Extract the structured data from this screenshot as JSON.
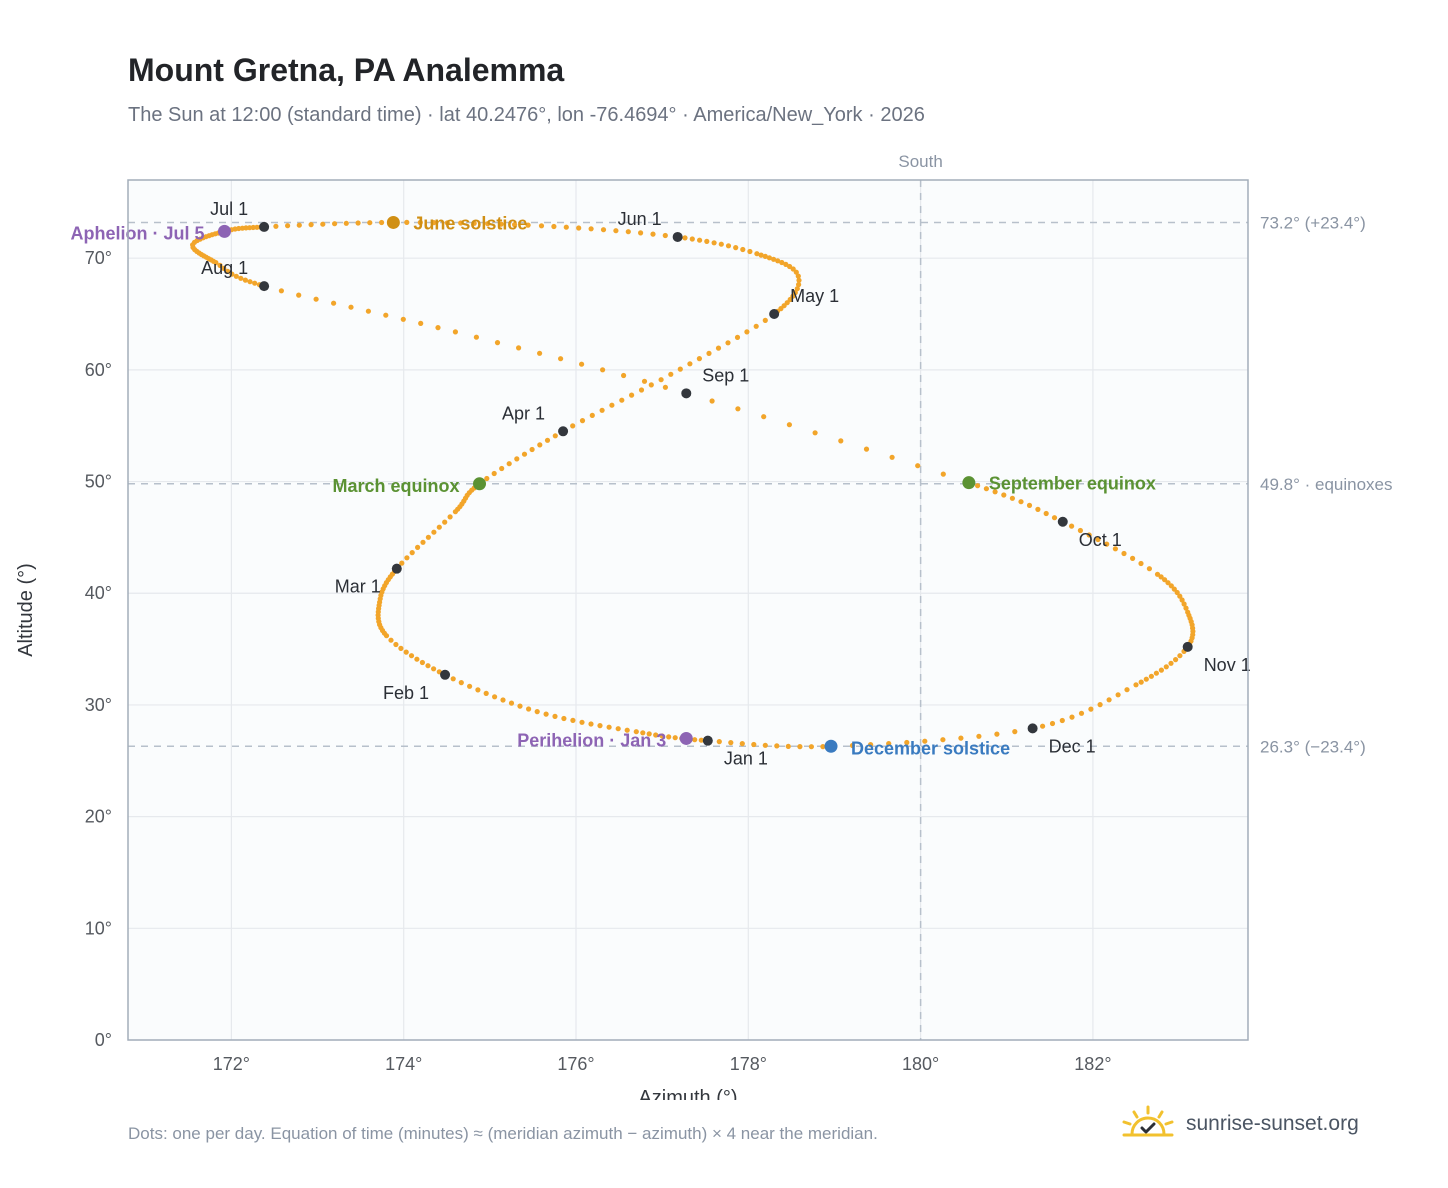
{
  "title": "Mount Gretna, PA Analemma",
  "subtitle": "The Sun at 12:00 (standard time) · lat 40.2476°, lon -76.4694° · America/New_York · 2026",
  "footnote": "Dots: one per day. Equation of time (minutes) ≈ (meridian azimuth − azimuth) × 4 near the meridian.",
  "brand": "sunrise-sunset.org",
  "colors": {
    "curve": "#f2a52a",
    "month_marker": "#33373d",
    "solstice_june": "#d08f14",
    "solstice_december": "#3a7bc0",
    "equinox": "#5b9233",
    "apsis": "#8d64b4",
    "grid": "#e6e9ed",
    "plot_bg": "#fafcfd",
    "axis": "#a3adba"
  },
  "chart_data": {
    "type": "scatter",
    "xlabel": "Azimuth (°)",
    "ylabel": "Altitude (°)",
    "xlim": [
      170.8,
      183.8
    ],
    "ylim": [
      0,
      77
    ],
    "xticks": [
      172,
      174,
      176,
      178,
      180,
      182
    ],
    "yticks": [
      0,
      10,
      20,
      30,
      40,
      50,
      60,
      70
    ],
    "x_tick_labels": [
      "172°",
      "174°",
      "176°",
      "178°",
      "180°",
      "182°"
    ],
    "y_tick_labels": [
      "0°",
      "10°",
      "20°",
      "30°",
      "40°",
      "50°",
      "60°",
      "70°"
    ],
    "grid": true,
    "south_line": {
      "azimuth": 180,
      "label": "South"
    },
    "reference_lines": [
      {
        "altitude": 73.2,
        "label": "73.2° (+23.4°)"
      },
      {
        "altitude": 49.8,
        "label": "49.8° · equinoxes"
      },
      {
        "altitude": 26.3,
        "label": "26.3° (−23.4°)"
      }
    ],
    "month_markers": [
      {
        "label": "Jan 1",
        "azimuth": 177.53,
        "altitude": 26.8
      },
      {
        "label": "Feb 1",
        "azimuth": 174.48,
        "altitude": 32.7
      },
      {
        "label": "Mar 1",
        "azimuth": 173.92,
        "altitude": 42.2
      },
      {
        "label": "Apr 1",
        "azimuth": 175.85,
        "altitude": 54.5
      },
      {
        "label": "May 1",
        "azimuth": 178.3,
        "altitude": 65.0
      },
      {
        "label": "Jun 1",
        "azimuth": 177.18,
        "altitude": 71.9
      },
      {
        "label": "Jul 1",
        "azimuth": 172.38,
        "altitude": 72.8
      },
      {
        "label": "Aug 1",
        "azimuth": 172.38,
        "altitude": 67.5
      },
      {
        "label": "Sep 1",
        "azimuth": 177.28,
        "altitude": 57.9
      },
      {
        "label": "Oct 1",
        "azimuth": 181.65,
        "altitude": 46.4
      },
      {
        "label": "Nov 1",
        "azimuth": 183.1,
        "altitude": 35.2
      },
      {
        "label": "Dec 1",
        "azimuth": 181.3,
        "altitude": 27.9
      }
    ],
    "events": [
      {
        "label": "June solstice",
        "azimuth": 173.88,
        "altitude": 73.2,
        "kind": "solstice_june"
      },
      {
        "label": "December solstice",
        "azimuth": 178.96,
        "altitude": 26.3,
        "kind": "solstice_december"
      },
      {
        "label": "March equinox",
        "azimuth": 174.88,
        "altitude": 49.8,
        "kind": "equinox"
      },
      {
        "label": "September equinox",
        "azimuth": 180.56,
        "altitude": 49.9,
        "kind": "equinox"
      },
      {
        "label": "Aphelion · Jul 5",
        "azimuth": 171.92,
        "altitude": 72.4,
        "kind": "apsis"
      },
      {
        "label": "Perihelion · Jan 3",
        "azimuth": 177.28,
        "altitude": 27.0,
        "kind": "apsis"
      }
    ],
    "path_knots": [
      [
        177.53,
        26.8
      ],
      [
        176.7,
        27.6
      ],
      [
        175.55,
        29.4
      ],
      [
        174.48,
        32.7
      ],
      [
        173.8,
        36.2
      ],
      [
        173.72,
        39.2
      ],
      [
        173.92,
        42.2
      ],
      [
        174.6,
        47.3
      ],
      [
        174.88,
        49.8
      ],
      [
        175.85,
        54.5
      ],
      [
        177.1,
        59.6
      ],
      [
        178.3,
        65.0
      ],
      [
        178.58,
        68.4
      ],
      [
        178.1,
        70.4
      ],
      [
        177.18,
        71.9
      ],
      [
        175.6,
        72.9
      ],
      [
        173.88,
        73.2
      ],
      [
        172.38,
        72.8
      ],
      [
        171.92,
        72.4
      ],
      [
        171.55,
        71.2
      ],
      [
        171.82,
        69.6
      ],
      [
        172.38,
        67.5
      ],
      [
        174.6,
        63.4
      ],
      [
        177.28,
        57.9
      ],
      [
        180.56,
        49.9
      ],
      [
        181.65,
        46.4
      ],
      [
        182.75,
        41.7
      ],
      [
        183.1,
        38.3
      ],
      [
        183.1,
        35.2
      ],
      [
        182.5,
        31.8
      ],
      [
        181.3,
        27.9
      ],
      [
        179.0,
        26.3
      ],
      [
        177.53,
        26.8
      ]
    ]
  }
}
